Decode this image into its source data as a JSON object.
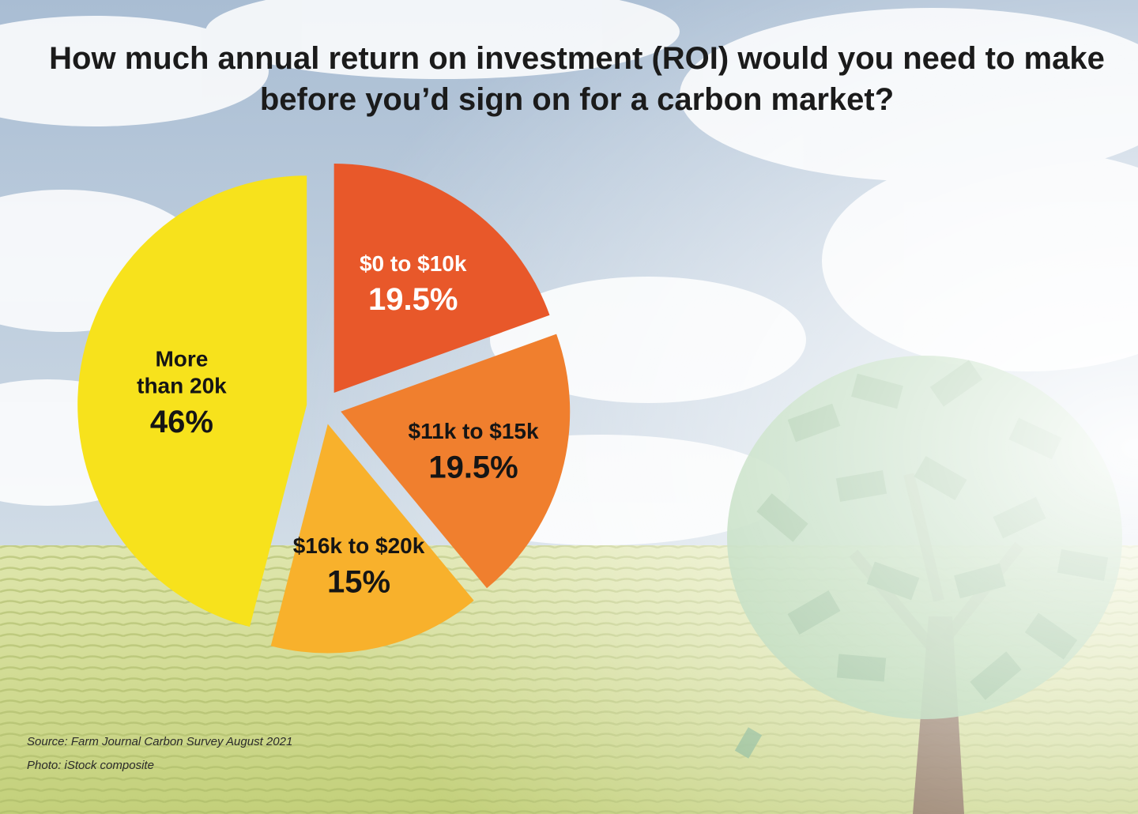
{
  "chart_data": {
    "type": "pie",
    "title": "How much annual return on investment (ROI) would you need to make before you’d sign on for a carbon market?",
    "slices": [
      {
        "label_lines": [
          "$0 to $10k"
        ],
        "value_label": "19.5%",
        "value": 19.5,
        "color": "#e8582a",
        "text_color": "#ffffff"
      },
      {
        "label_lines": [
          "$11k to $15k"
        ],
        "value_label": "19.5%",
        "value": 19.5,
        "color": "#f07f2e",
        "text_color": "#151515"
      },
      {
        "label_lines": [
          "$16k to $20k"
        ],
        "value_label": "15%",
        "value": 15,
        "color": "#f8b12c",
        "text_color": "#151515"
      },
      {
        "label_lines": [
          "More",
          "than 20k"
        ],
        "value_label": "46%",
        "value": 46,
        "color": "#f7e21c",
        "text_color": "#151515"
      }
    ]
  },
  "footer": {
    "source": "Source: Farm Journal Carbon Survey August 2021",
    "photo_credit": "Photo: iStock composite"
  },
  "background": {
    "sky_color": "#b9c9db",
    "cloud_color": "#ffffff",
    "field_color": "#cfd98f",
    "tree_leaf_color": "#9cc99a",
    "tree_trunk_color": "#6e4a3a",
    "icon": "money-tree-icon"
  }
}
